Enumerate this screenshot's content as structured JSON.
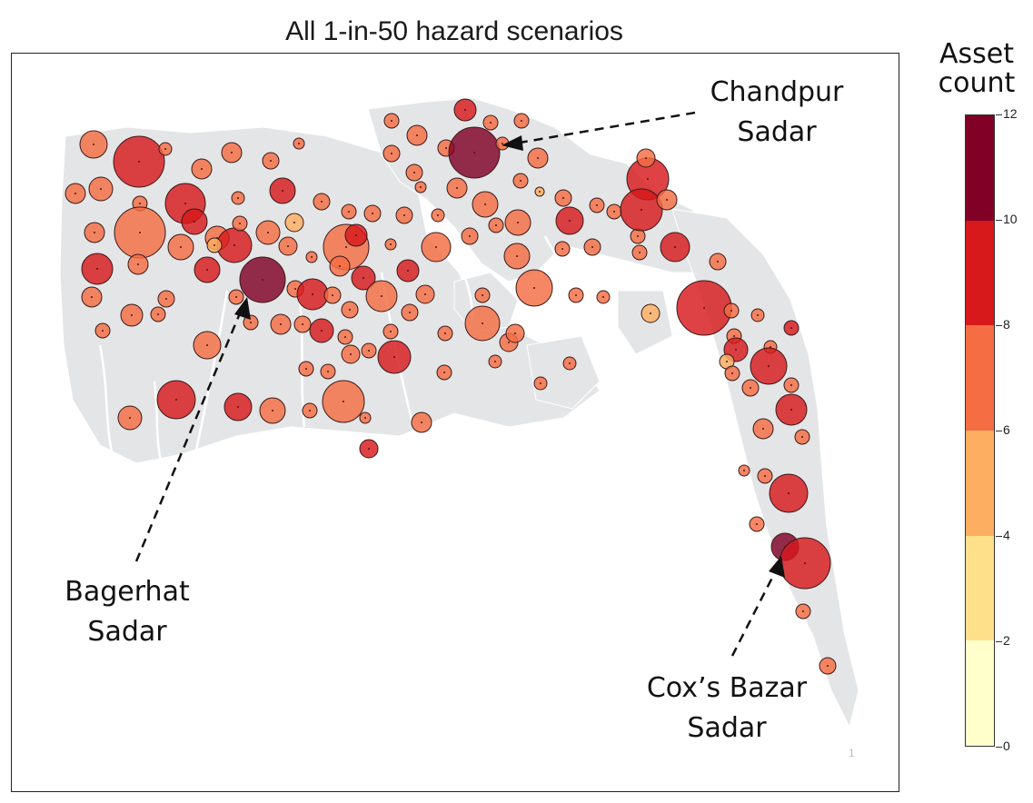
{
  "title": "All 1-in-50 hazard scenarios",
  "legend": {
    "title_line1": "Asset",
    "title_line2": "count",
    "ticks": [
      "0",
      "2",
      "4",
      "6",
      "8",
      "10",
      "12"
    ],
    "colors": [
      "#ffffcc",
      "#fee08b",
      "#fdae61",
      "#f46d43",
      "#d7191c",
      "#800026"
    ]
  },
  "callouts": {
    "chandpur": {
      "line1": "Chandpur",
      "line2": "Sadar"
    },
    "bagerhat": {
      "line1": "Bagerhat",
      "line2": "Sadar"
    },
    "coxs": {
      "line1": "Cox’s Bazar",
      "line2": "Sadar"
    }
  },
  "watermark": "1"
}
